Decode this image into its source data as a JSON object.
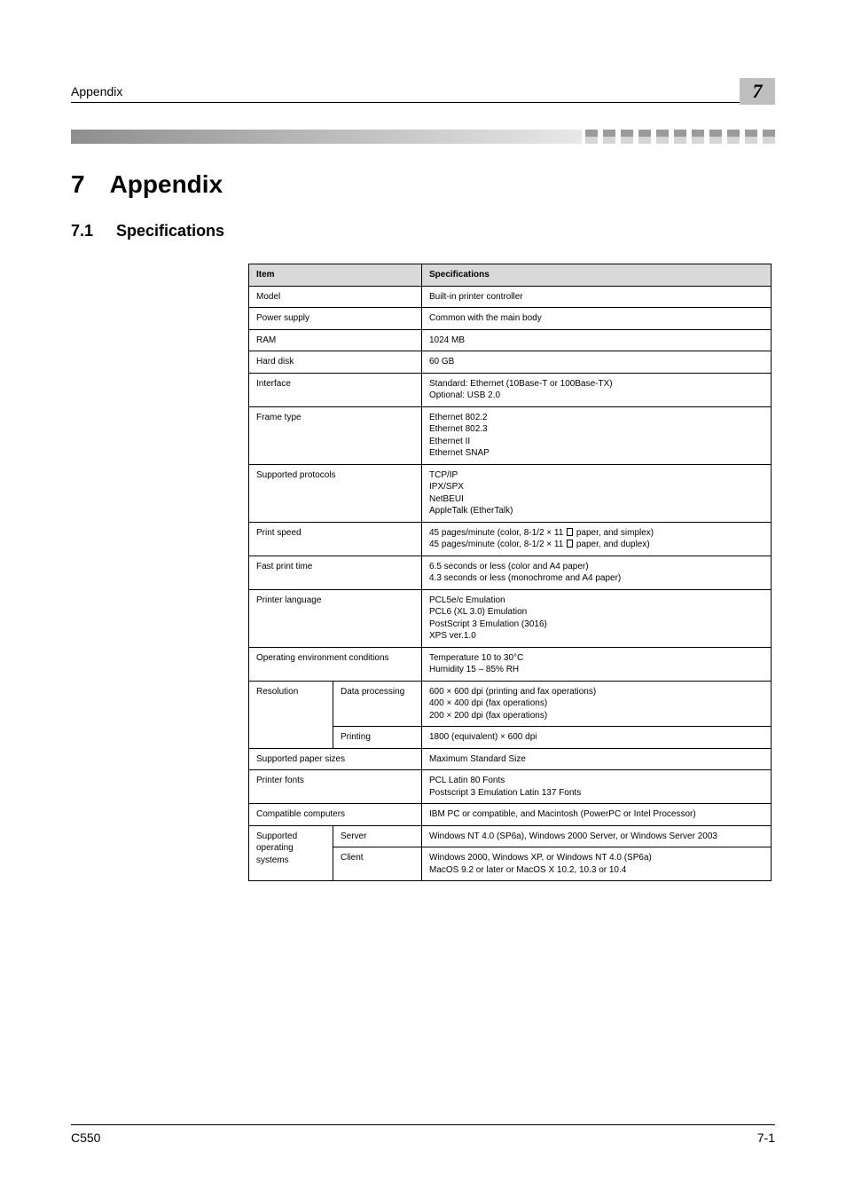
{
  "page": {
    "header_running": "Appendix",
    "header_badge": "7",
    "footer_left": "C550",
    "footer_right": "7-1"
  },
  "chapter": {
    "number": "7",
    "title": "Appendix"
  },
  "section": {
    "number": "7.1",
    "title": "Specifications"
  },
  "table": {
    "head": {
      "item": "Item",
      "spec": "Specifications"
    },
    "rows": {
      "model": {
        "label": "Model",
        "value": "Built-in printer controller"
      },
      "power": {
        "label": "Power supply",
        "value": "Common with the main body"
      },
      "ram": {
        "label": "RAM",
        "value": "1024 MB"
      },
      "hdd": {
        "label": "Hard disk",
        "value": "60 GB"
      },
      "interface": {
        "label": "Interface",
        "value": "Standard: Ethernet (10Base-T or 100Base-TX)\nOptional: USB 2.0"
      },
      "frame": {
        "label": "Frame type",
        "value": "Ethernet 802.2\nEthernet 802.3\nEthernet II\nEthernet SNAP"
      },
      "protocols": {
        "label": "Supported protocols",
        "value": "TCP/IP\nIPX/SPX\nNetBEUI\nAppleTalk (EtherTalk)"
      },
      "printspeed": {
        "label": "Print speed",
        "line1a": "45 pages/minute (color, 8-1/2 × 11 ",
        "line1b": " paper, and simplex)",
        "line2a": "45 pages/minute (color, 8-1/2 × 11 ",
        "line2b": " paper, and duplex)"
      },
      "fast": {
        "label": "Fast print time",
        "value": "6.5 seconds or less (color and A4 paper)\n4.3 seconds or less (monochrome and A4 paper)"
      },
      "lang": {
        "label": "Printer language",
        "value": "PCL5e/c Emulation\nPCL6 (XL 3.0) Emulation\nPostScript 3 Emulation (3016)\nXPS ver.1.0"
      },
      "env": {
        "label": "Operating environment conditions",
        "value": "Temperature 10 to 30°C\nHumidity 15 – 85% RH"
      },
      "resolution": {
        "label": "Resolution",
        "sub1": "Data processing",
        "val1": "600 × 600 dpi (printing and fax operations)\n400 × 400 dpi (fax operations)\n200 × 200 dpi (fax operations)",
        "sub2": "Printing",
        "val2": "1800 (equivalent) × 600 dpi"
      },
      "papersizes": {
        "label": "Supported paper sizes",
        "value": "Maximum Standard Size"
      },
      "fonts": {
        "label": "Printer fonts",
        "value": "PCL Latin 80 Fonts\nPostscript 3 Emulation Latin 137 Fonts"
      },
      "compat": {
        "label": "Compatible computers",
        "value": "IBM PC or compatible, and Macintosh (PowerPC or Intel Processor)"
      },
      "os": {
        "label": "Supported operating systems",
        "sub1": "Server",
        "val1": "Windows NT 4.0 (SP6a), Windows 2000 Server, or Windows Server 2003",
        "sub2": "Client",
        "val2": "Windows 2000, Windows XP, or Windows NT 4.0 (SP6a)\nMacOS 9.2 or later or MacOS X 10.2, 10.3 or 10.4"
      }
    }
  },
  "style": {
    "badge_bg": "#bfbfbf",
    "head_bg": "#d9d9d9"
  }
}
